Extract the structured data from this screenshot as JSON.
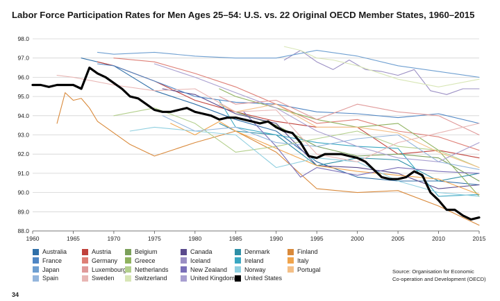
{
  "page_title": "Labor Force Participation Rates for Men Ages 25–54: U.S. vs. 22 Original OECD Member States, 1960–2015",
  "source_line1": "Source: Organisation for Economic",
  "source_line2": "Co-operation and Development (OECD)",
  "page_number": "34",
  "chart_data": {
    "type": "line",
    "title": "Labor Force Participation Rates for Men Ages 25–54: U.S. vs. 22 Original OECD Member States, 1960–2015",
    "xlabel": "",
    "ylabel": "",
    "xlim": [
      1960,
      2015
    ],
    "ylim": [
      88.0,
      98.0
    ],
    "x_ticks": [
      1960,
      1965,
      1970,
      1975,
      1980,
      1985,
      1990,
      1995,
      2000,
      2005,
      2010,
      2015
    ],
    "y_ticks": [
      88.0,
      89.0,
      90.0,
      91.0,
      92.0,
      93.0,
      94.0,
      95.0,
      96.0,
      97.0,
      98.0
    ],
    "grid": "horizontal",
    "legend_position": "bottom",
    "series": [
      {
        "name": "Australia",
        "color": "#2f6fa8",
        "x": [
          1966,
          1970,
          1975,
          1980,
          1985,
          1990,
          1995,
          2000,
          2005,
          2010,
          2015
        ],
        "y": [
          97.0,
          96.6,
          95.3,
          94.6,
          93.8,
          93.2,
          91.6,
          90.8,
          90.6,
          90.6,
          90.4
        ]
      },
      {
        "name": "Austria",
        "color": "#c0413b",
        "x": [
          1968,
          1970,
          1975,
          1980,
          1985,
          1990,
          1995,
          2000,
          2005,
          2010,
          2015
        ],
        "y": [
          96.8,
          96.6,
          95.8,
          94.8,
          94.2,
          93.7,
          93.4,
          93.4,
          92.0,
          92.2,
          91.8
        ]
      },
      {
        "name": "Belgium",
        "color": "#7ba05a",
        "x": [
          1983,
          1985,
          1990,
          1995,
          2000,
          2005,
          2010,
          2015
        ],
        "y": [
          94.6,
          94.2,
          93.5,
          92.4,
          91.9,
          92.0,
          91.8,
          90.6
        ]
      },
      {
        "name": "Canada",
        "color": "#5a4a8c",
        "x": [
          1976,
          1980,
          1985,
          1990,
          1995,
          2000,
          2005,
          2010,
          2015
        ],
        "y": [
          95.4,
          95.1,
          94.1,
          93.6,
          91.4,
          91.3,
          91.0,
          90.2,
          90.4
        ]
      },
      {
        "name": "Denmark",
        "color": "#2e8fa6",
        "x": [
          1983,
          1985,
          1990,
          1995,
          2000,
          2005,
          2010,
          2015
        ],
        "y": [
          93.6,
          93.2,
          93.0,
          91.4,
          91.8,
          91.7,
          90.6,
          91.0
        ]
      },
      {
        "name": "Finland",
        "color": "#d9893a",
        "x": [
          1963,
          1964,
          1965,
          1966,
          1967,
          1968,
          1970,
          1972,
          1975,
          1980,
          1985,
          1990,
          1995,
          2000,
          2005,
          2010,
          2015
        ],
        "y": [
          93.6,
          95.2,
          94.8,
          94.9,
          94.4,
          93.7,
          93.1,
          92.5,
          91.9,
          92.6,
          93.2,
          92.1,
          90.2,
          90.0,
          90.1,
          89.3,
          88.3
        ]
      },
      {
        "name": "France",
        "color": "#4f86c4",
        "x": [
          1968,
          1970,
          1975,
          1980,
          1985,
          1990,
          1995,
          2000,
          2005,
          2010,
          2015
        ],
        "y": [
          96.7,
          96.6,
          95.8,
          95.0,
          94.7,
          94.6,
          94.2,
          94.1,
          93.9,
          94.1,
          93.6
        ]
      },
      {
        "name": "Germany",
        "color": "#de7f76",
        "x": [
          1970,
          1975,
          1980,
          1985,
          1990,
          1995,
          2000,
          2005,
          2010,
          2015
        ],
        "y": [
          97.0,
          96.8,
          96.2,
          95.5,
          94.6,
          93.6,
          93.8,
          93.2,
          92.9,
          92.2
        ]
      },
      {
        "name": "Greece",
        "color": "#8fb25e",
        "x": [
          1983,
          1985,
          1990,
          1995,
          2000,
          2005,
          2010,
          2015
        ],
        "y": [
          95.4,
          95.0,
          94.4,
          93.8,
          93.4,
          93.6,
          92.2,
          89.8
        ]
      },
      {
        "name": "Iceland",
        "color": "#9b8fc4",
        "x": [
          1991,
          1993,
          1995,
          1997,
          1999,
          2001,
          2003,
          2005,
          2007,
          2009,
          2011,
          2013,
          2015
        ],
        "y": [
          96.9,
          97.4,
          96.8,
          96.4,
          96.9,
          96.4,
          96.3,
          96.1,
          96.4,
          95.3,
          95.1,
          95.4,
          95.4
        ]
      },
      {
        "name": "Ireland",
        "color": "#3aa7c2",
        "x": [
          1983,
          1985,
          1990,
          1995,
          2000,
          2005,
          2010,
          2015
        ],
        "y": [
          94.8,
          93.4,
          93.0,
          92.6,
          92.4,
          92.3,
          89.8,
          89.9
        ]
      },
      {
        "name": "Italy",
        "color": "#f0a44c",
        "x": [
          1977,
          1980,
          1983,
          1985,
          1990,
          1995,
          2000,
          2005,
          2010,
          2015
        ],
        "y": [
          93.6,
          93.0,
          93.7,
          93.2,
          92.3,
          91.4,
          91.1,
          90.9,
          90.7,
          89.9
        ]
      },
      {
        "name": "Japan",
        "color": "#6e9fd1",
        "x": [
          1968,
          1970,
          1975,
          1980,
          1985,
          1990,
          1995,
          2000,
          2005,
          2010,
          2015
        ],
        "y": [
          97.3,
          97.2,
          97.3,
          97.1,
          97.0,
          97.0,
          97.4,
          97.1,
          96.6,
          96.3,
          96.0
        ]
      },
      {
        "name": "Luxembourg",
        "color": "#e09a9a",
        "x": [
          1983,
          1985,
          1990,
          1995,
          2000,
          2005,
          2010,
          2015
        ],
        "y": [
          95.0,
          94.6,
          94.8,
          93.8,
          94.6,
          94.2,
          94.0,
          93.0
        ]
      },
      {
        "name": "Netherlands",
        "color": "#b3cf8c",
        "x": [
          1970,
          1975,
          1980,
          1985,
          1990,
          1995,
          2000,
          2005,
          2010,
          2015
        ],
        "y": [
          94.0,
          94.4,
          93.6,
          92.1,
          92.4,
          92.8,
          93.2,
          92.4,
          92.2,
          91.3
        ]
      },
      {
        "name": "New Zealand",
        "color": "#7a6fb8",
        "x": [
          1986,
          1990,
          1993,
          1995,
          2000,
          2005,
          2010,
          2015
        ],
        "y": [
          94.2,
          92.4,
          90.8,
          91.3,
          90.9,
          91.3,
          91.1,
          91.0
        ]
      },
      {
        "name": "Norway",
        "color": "#8fcfe0",
        "x": [
          1972,
          1975,
          1980,
          1985,
          1990,
          1995,
          2000,
          2005,
          2010,
          2015
        ],
        "y": [
          93.2,
          93.4,
          93.2,
          93.0,
          91.3,
          91.8,
          91.6,
          90.6,
          90.0,
          89.8
        ]
      },
      {
        "name": "Portugal",
        "color": "#f4bf86",
        "x": [
          1983,
          1985,
          1990,
          1995,
          2000,
          2005,
          2010,
          2015
        ],
        "y": [
          94.6,
          94.2,
          94.6,
          93.4,
          93.4,
          93.1,
          92.1,
          91.3
        ]
      },
      {
        "name": "Spain",
        "color": "#94b6dd",
        "x": [
          1976,
          1980,
          1985,
          1990,
          1995,
          2000,
          2005,
          2010,
          2015
        ],
        "y": [
          94.0,
          93.2,
          93.4,
          92.6,
          92.4,
          92.8,
          93.0,
          91.6,
          91.2
        ]
      },
      {
        "name": "Sweden",
        "color": "#e8b6b4",
        "x": [
          1963,
          1965,
          1970,
          1975,
          1980,
          1985,
          1990,
          1995,
          2000,
          2005,
          2010,
          2015
        ],
        "y": [
          96.1,
          96.0,
          95.6,
          95.3,
          95.4,
          94.2,
          94.3,
          92.0,
          91.6,
          92.6,
          93.1,
          93.6
        ]
      },
      {
        "name": "Switzerland",
        "color": "#d8e6b6",
        "x": [
          1991,
          1993,
          1995,
          1997,
          2000,
          2005,
          2010,
          2015
        ],
        "y": [
          97.6,
          97.4,
          97.0,
          96.9,
          96.6,
          95.9,
          95.5,
          95.9
        ]
      },
      {
        "name": "United Kingdom",
        "color": "#a89fd0",
        "x": [
          1975,
          1980,
          1985,
          1990,
          1995,
          2000,
          2005,
          2010,
          2015
        ],
        "y": [
          96.7,
          96.0,
          95.2,
          94.4,
          93.2,
          92.4,
          91.8,
          91.6,
          92.6
        ]
      },
      {
        "name": "United States",
        "color": "#000000",
        "x": [
          1960,
          1961,
          1962,
          1963,
          1964,
          1965,
          1966,
          1967,
          1968,
          1969,
          1970,
          1971,
          1972,
          1973,
          1974,
          1975,
          1976,
          1977,
          1978,
          1979,
          1980,
          1981,
          1982,
          1983,
          1984,
          1985,
          1986,
          1987,
          1988,
          1989,
          1990,
          1991,
          1992,
          1993,
          1994,
          1995,
          1996,
          1997,
          1998,
          1999,
          2000,
          2001,
          2002,
          2003,
          2004,
          2005,
          2006,
          2007,
          2008,
          2009,
          2010,
          2011,
          2012,
          2013,
          2014,
          2015
        ],
        "y": [
          95.6,
          95.6,
          95.5,
          95.6,
          95.6,
          95.6,
          95.4,
          96.5,
          96.2,
          96.0,
          95.7,
          95.4,
          95.0,
          94.9,
          94.6,
          94.3,
          94.2,
          94.2,
          94.3,
          94.4,
          94.2,
          94.1,
          94.0,
          93.8,
          93.9,
          93.9,
          93.8,
          93.7,
          93.6,
          93.7,
          93.4,
          93.2,
          93.1,
          92.6,
          91.9,
          91.8,
          92.0,
          92.0,
          92.0,
          91.9,
          91.8,
          91.6,
          91.2,
          90.8,
          90.7,
          90.7,
          90.8,
          91.1,
          90.9,
          90.0,
          89.6,
          89.1,
          89.1,
          88.8,
          88.6,
          88.7
        ]
      }
    ]
  }
}
